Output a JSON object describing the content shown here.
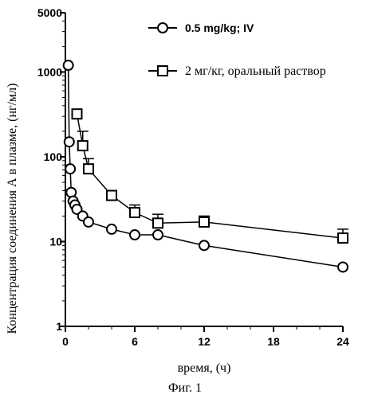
{
  "chart_data": {
    "type": "line",
    "xlabel": "время, (ч)",
    "ylabel": "Концентрация соединения А в плазме, (нг/мл)",
    "caption": "Фиг. 1",
    "xlim": [
      0,
      24
    ],
    "ylim": [
      1,
      5000
    ],
    "y_scale": "log",
    "x_ticks": [
      0,
      6,
      12,
      18,
      24
    ],
    "x_tick_labels": [
      "0",
      "6",
      "12",
      "18",
      "24"
    ],
    "y_ticks": [
      1,
      10,
      100,
      1000,
      5000
    ],
    "y_tick_labels": [
      "1",
      "10",
      "100",
      "1000",
      "5000"
    ],
    "legend_position": "top-right",
    "series": [
      {
        "name": "0.5 mg/kg; IV",
        "marker": "circle",
        "x": [
          0.25,
          0.33,
          0.42,
          0.5,
          0.67,
          0.83,
          1,
          1.5,
          2,
          4,
          6,
          8,
          12,
          24
        ],
        "y": [
          1200,
          150,
          72,
          38,
          30,
          27,
          24,
          20,
          17,
          14,
          12,
          12,
          9,
          5
        ]
      },
      {
        "name": "2 мг/кг, оральный раствор",
        "marker": "square",
        "x": [
          1,
          1.5,
          2,
          4,
          6,
          8,
          12,
          24
        ],
        "y": [
          320,
          135,
          72,
          35,
          22,
          16.5,
          17,
          11
        ],
        "error_upper": [
          0,
          200,
          95,
          0,
          27,
          21,
          20,
          14
        ]
      }
    ]
  }
}
